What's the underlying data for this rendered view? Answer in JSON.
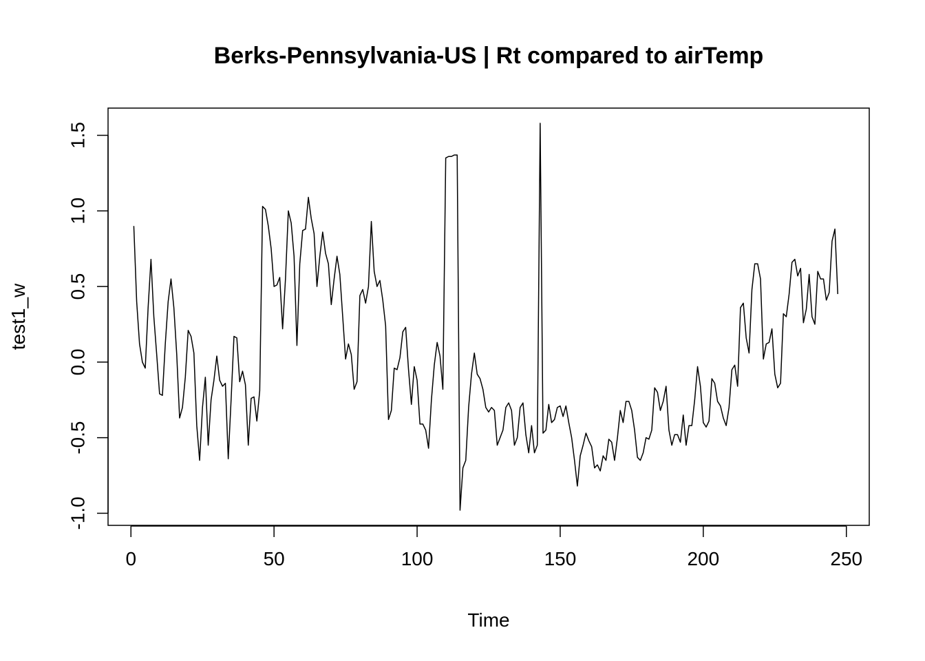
{
  "chart_data": {
    "type": "line",
    "title": "Berks-Pennsylvania-US | Rt compared to airTemp",
    "xlabel": "Time",
    "ylabel": "test1_w",
    "xlim": [
      -8,
      258
    ],
    "ylim": [
      -1.08,
      1.68
    ],
    "x_ticks": [
      0,
      50,
      100,
      150,
      200,
      250
    ],
    "x_tick_labels": [
      "0",
      "50",
      "100",
      "150",
      "200",
      "250"
    ],
    "y_ticks": [
      -1.0,
      -0.5,
      0.0,
      0.5,
      1.0,
      1.5
    ],
    "y_tick_labels": [
      "-1.0",
      "-0.5",
      "0.0",
      "0.5",
      "1.0",
      "1.5"
    ],
    "grid": false,
    "legend": "none",
    "line_color": "#000000",
    "series": [
      {
        "x_start": 1,
        "x_step": 1,
        "values": [
          0.9,
          0.4,
          0.12,
          0.0,
          -0.04,
          0.36,
          0.68,
          0.3,
          0.05,
          -0.21,
          -0.22,
          0.12,
          0.4,
          0.55,
          0.36,
          0.05,
          -0.37,
          -0.3,
          -0.1,
          0.21,
          0.17,
          0.06,
          -0.42,
          -0.65,
          -0.3,
          -0.1,
          -0.55,
          -0.25,
          -0.12,
          0.04,
          -0.12,
          -0.16,
          -0.14,
          -0.64,
          -0.25,
          0.17,
          0.16,
          -0.13,
          -0.06,
          -0.15,
          -0.55,
          -0.24,
          -0.23,
          -0.39,
          -0.19,
          1.03,
          1.01,
          0.9,
          0.75,
          0.5,
          0.51,
          0.56,
          0.22,
          0.55,
          1.0,
          0.92,
          0.7,
          0.11,
          0.65,
          0.87,
          0.88,
          1.09,
          0.95,
          0.85,
          0.5,
          0.7,
          0.86,
          0.72,
          0.65,
          0.38,
          0.55,
          0.7,
          0.58,
          0.3,
          0.02,
          0.12,
          0.05,
          -0.18,
          -0.13,
          0.44,
          0.48,
          0.39,
          0.5,
          0.93,
          0.6,
          0.5,
          0.54,
          0.41,
          0.24,
          -0.38,
          -0.32,
          -0.04,
          -0.05,
          0.03,
          0.2,
          0.23,
          -0.05,
          -0.28,
          -0.03,
          -0.12,
          -0.41,
          -0.41,
          -0.45,
          -0.57,
          -0.25,
          -0.02,
          0.13,
          0.04,
          -0.18,
          1.35,
          1.36,
          1.36,
          1.37,
          1.37,
          -0.98,
          -0.7,
          -0.65,
          -0.3,
          -0.08,
          0.06,
          -0.08,
          -0.11,
          -0.18,
          -0.3,
          -0.33,
          -0.3,
          -0.32,
          -0.55,
          -0.5,
          -0.45,
          -0.3,
          -0.27,
          -0.32,
          -0.55,
          -0.5,
          -0.3,
          -0.27,
          -0.48,
          -0.6,
          -0.42,
          -0.6,
          -0.55,
          1.58,
          -0.47,
          -0.45,
          -0.28,
          -0.4,
          -0.38,
          -0.3,
          -0.29,
          -0.36,
          -0.29,
          -0.4,
          -0.5,
          -0.65,
          -0.82,
          -0.62,
          -0.55,
          -0.47,
          -0.52,
          -0.56,
          -0.7,
          -0.68,
          -0.72,
          -0.62,
          -0.65,
          -0.51,
          -0.53,
          -0.65,
          -0.5,
          -0.32,
          -0.4,
          -0.26,
          -0.26,
          -0.32,
          -0.45,
          -0.63,
          -0.65,
          -0.6,
          -0.5,
          -0.51,
          -0.45,
          -0.17,
          -0.2,
          -0.32,
          -0.26,
          -0.16,
          -0.45,
          -0.55,
          -0.48,
          -0.48,
          -0.53,
          -0.35,
          -0.55,
          -0.42,
          -0.42,
          -0.25,
          -0.03,
          -0.16,
          -0.4,
          -0.43,
          -0.39,
          -0.11,
          -0.14,
          -0.26,
          -0.29,
          -0.37,
          -0.42,
          -0.3,
          -0.05,
          -0.02,
          -0.16,
          0.36,
          0.39,
          0.16,
          0.06,
          0.48,
          0.65,
          0.65,
          0.55,
          0.02,
          0.12,
          0.13,
          0.22,
          -0.08,
          -0.17,
          -0.14,
          0.32,
          0.3,
          0.45,
          0.66,
          0.68,
          0.57,
          0.62,
          0.26,
          0.35,
          0.58,
          0.3,
          0.25,
          0.6,
          0.55,
          0.55,
          0.41,
          0.46,
          0.8,
          0.88,
          0.45
        ]
      }
    ]
  }
}
